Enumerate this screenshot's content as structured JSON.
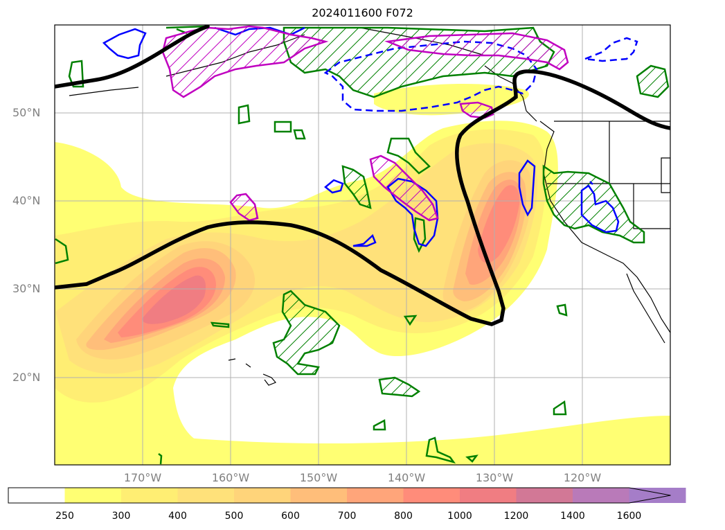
{
  "title": "2024011600 F072",
  "lat_labels": [
    "50°N",
    "40°N",
    "30°N",
    "20°N"
  ],
  "lon_labels": [
    "170°W",
    "160°W",
    "150°W",
    "140°W",
    "130°W",
    "120°W"
  ],
  "colorbar": {
    "ticks": [
      "250",
      "300",
      "400",
      "500",
      "600",
      "700",
      "800",
      "1000",
      "1200",
      "1400",
      "1600"
    ],
    "colors": [
      "#ffffff",
      "#ffff73",
      "#ffee73",
      "#ffe17a",
      "#ffd47a",
      "#ffbe7a",
      "#ffa57a",
      "#ff8c7a",
      "#f07d82",
      "#d27896",
      "#b97ab9",
      "#a57dc8"
    ],
    "extend": "max"
  },
  "contour_colors": {
    "thick_line": "#000000",
    "green": "#008000",
    "blue": "#0000ff",
    "magenta": "#c000c0"
  }
}
